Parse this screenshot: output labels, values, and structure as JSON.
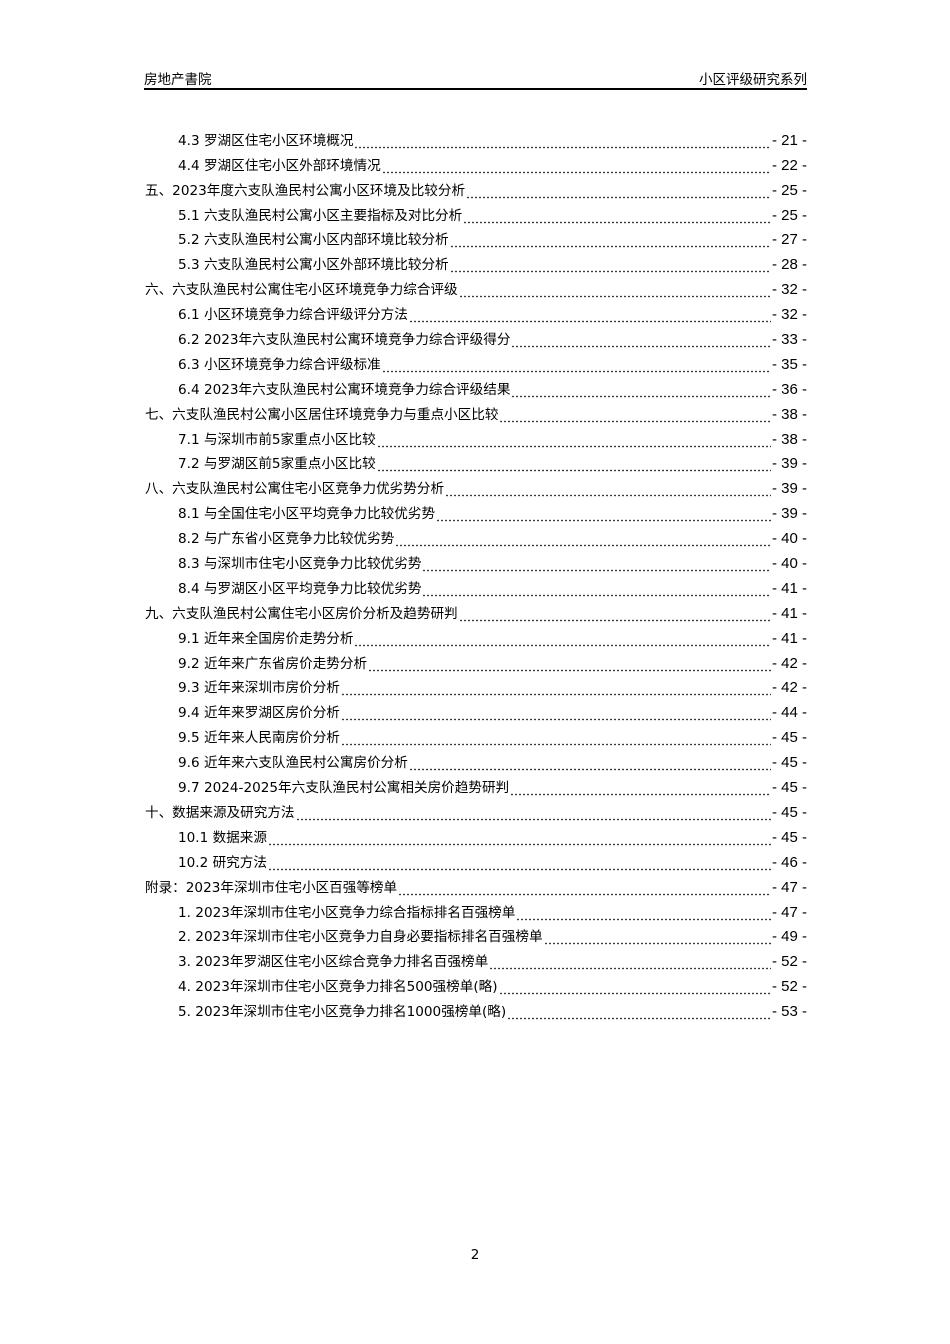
{
  "header": {
    "left": "房地产書院",
    "right": "小区评级研究系列"
  },
  "toc": [
    {
      "level": 2,
      "title": "4.3 罗湖区住宅小区环境概况",
      "page": "- 21 -"
    },
    {
      "level": 2,
      "title": "4.4 罗湖区住宅小区外部环境情况",
      "page": "- 22 -"
    },
    {
      "level": 1,
      "title": "五、2023年度六支队渔民村公寓小区环境及比较分析",
      "page": "- 25 -"
    },
    {
      "level": 2,
      "title": "5.1 六支队渔民村公寓小区主要指标及对比分析",
      "page": "- 25 -"
    },
    {
      "level": 2,
      "title": "5.2 六支队渔民村公寓小区内部环境比较分析",
      "page": "- 27 -"
    },
    {
      "level": 2,
      "title": "5.3 六支队渔民村公寓小区外部环境比较分析",
      "page": "- 28 -"
    },
    {
      "level": 1,
      "title": "六、六支队渔民村公寓住宅小区环境竞争力综合评级",
      "page": "- 32 -"
    },
    {
      "level": 2,
      "title": "6.1 小区环境竞争力综合评级评分方法",
      "page": "- 32 -"
    },
    {
      "level": 2,
      "title": "6.2 2023年六支队渔民村公寓环境竞争力综合评级得分",
      "page": "- 33 -"
    },
    {
      "level": 2,
      "title": "6.3 小区环境竞争力综合评级标准",
      "page": "- 35 -"
    },
    {
      "level": 2,
      "title": "6.4 2023年六支队渔民村公寓环境竞争力综合评级结果",
      "page": "- 36 -"
    },
    {
      "level": 1,
      "title": "七、六支队渔民村公寓小区居住环境竞争力与重点小区比较",
      "page": "- 38 -"
    },
    {
      "level": 2,
      "title": "7.1 与深圳市前5家重点小区比较",
      "page": "- 38 -"
    },
    {
      "level": 2,
      "title": "7.2 与罗湖区前5家重点小区比较",
      "page": "- 39 -"
    },
    {
      "level": 1,
      "title": "八、六支队渔民村公寓住宅小区竞争力优劣势分析",
      "page": "- 39 -"
    },
    {
      "level": 2,
      "title": "8.1 与全国住宅小区平均竞争力比较优劣势",
      "page": "- 39 -"
    },
    {
      "level": 2,
      "title": "8.2 与广东省小区竞争力比较优劣势",
      "page": "- 40 -"
    },
    {
      "level": 2,
      "title": "8.3 与深圳市住宅小区竞争力比较优劣势",
      "page": "- 40 -"
    },
    {
      "level": 2,
      "title": "8.4 与罗湖区小区平均竞争力比较优劣势",
      "page": "- 41 -"
    },
    {
      "level": 1,
      "title": "九、六支队渔民村公寓住宅小区房价分析及趋势研判",
      "page": "- 41 -"
    },
    {
      "level": 2,
      "title": "9.1 近年来全国房价走势分析",
      "page": "- 41 -"
    },
    {
      "level": 2,
      "title": "9.2 近年来广东省房价走势分析",
      "page": "- 42 -"
    },
    {
      "level": 2,
      "title": "9.3 近年来深圳市房价分析",
      "page": "- 42 -"
    },
    {
      "level": 2,
      "title": "9.4 近年来罗湖区房价分析",
      "page": "- 44 -"
    },
    {
      "level": 2,
      "title": "9.5 近年来人民南房价分析",
      "page": "- 45 -"
    },
    {
      "level": 2,
      "title": "9.6 近年来六支队渔民村公寓房价分析",
      "page": "- 45 -"
    },
    {
      "level": 2,
      "title": "9.7 2024-2025年六支队渔民村公寓相关房价趋势研判",
      "page": "- 45 -"
    },
    {
      "level": 1,
      "title": "十、数据来源及研究方法",
      "page": "- 45 -"
    },
    {
      "level": 2,
      "title": "10.1 数据来源",
      "page": "- 45 -"
    },
    {
      "level": 2,
      "title": "10.2 研究方法",
      "page": "- 46 -"
    },
    {
      "level": 1,
      "title": "附录：2023年深圳市住宅小区百强等榜单",
      "page": "- 47 -"
    },
    {
      "level": 2,
      "title": "1. 2023年深圳市住宅小区竞争力综合指标排名百强榜单",
      "page": "- 47 -"
    },
    {
      "level": 2,
      "title": "2. 2023年深圳市住宅小区竞争力自身必要指标排名百强榜单",
      "page": "- 49 -"
    },
    {
      "level": 2,
      "title": "3. 2023年罗湖区住宅小区综合竞争力排名百强榜单",
      "page": "- 52 -"
    },
    {
      "level": 2,
      "title": "4. 2023年深圳市住宅小区竞争力排名500强榜单(略)",
      "page": "- 52 -"
    },
    {
      "level": 2,
      "title": "5. 2023年深圳市住宅小区竞争力排名1000强榜单(略)",
      "page": "- 53 -"
    }
  ],
  "footer": {
    "page_number": "2"
  }
}
